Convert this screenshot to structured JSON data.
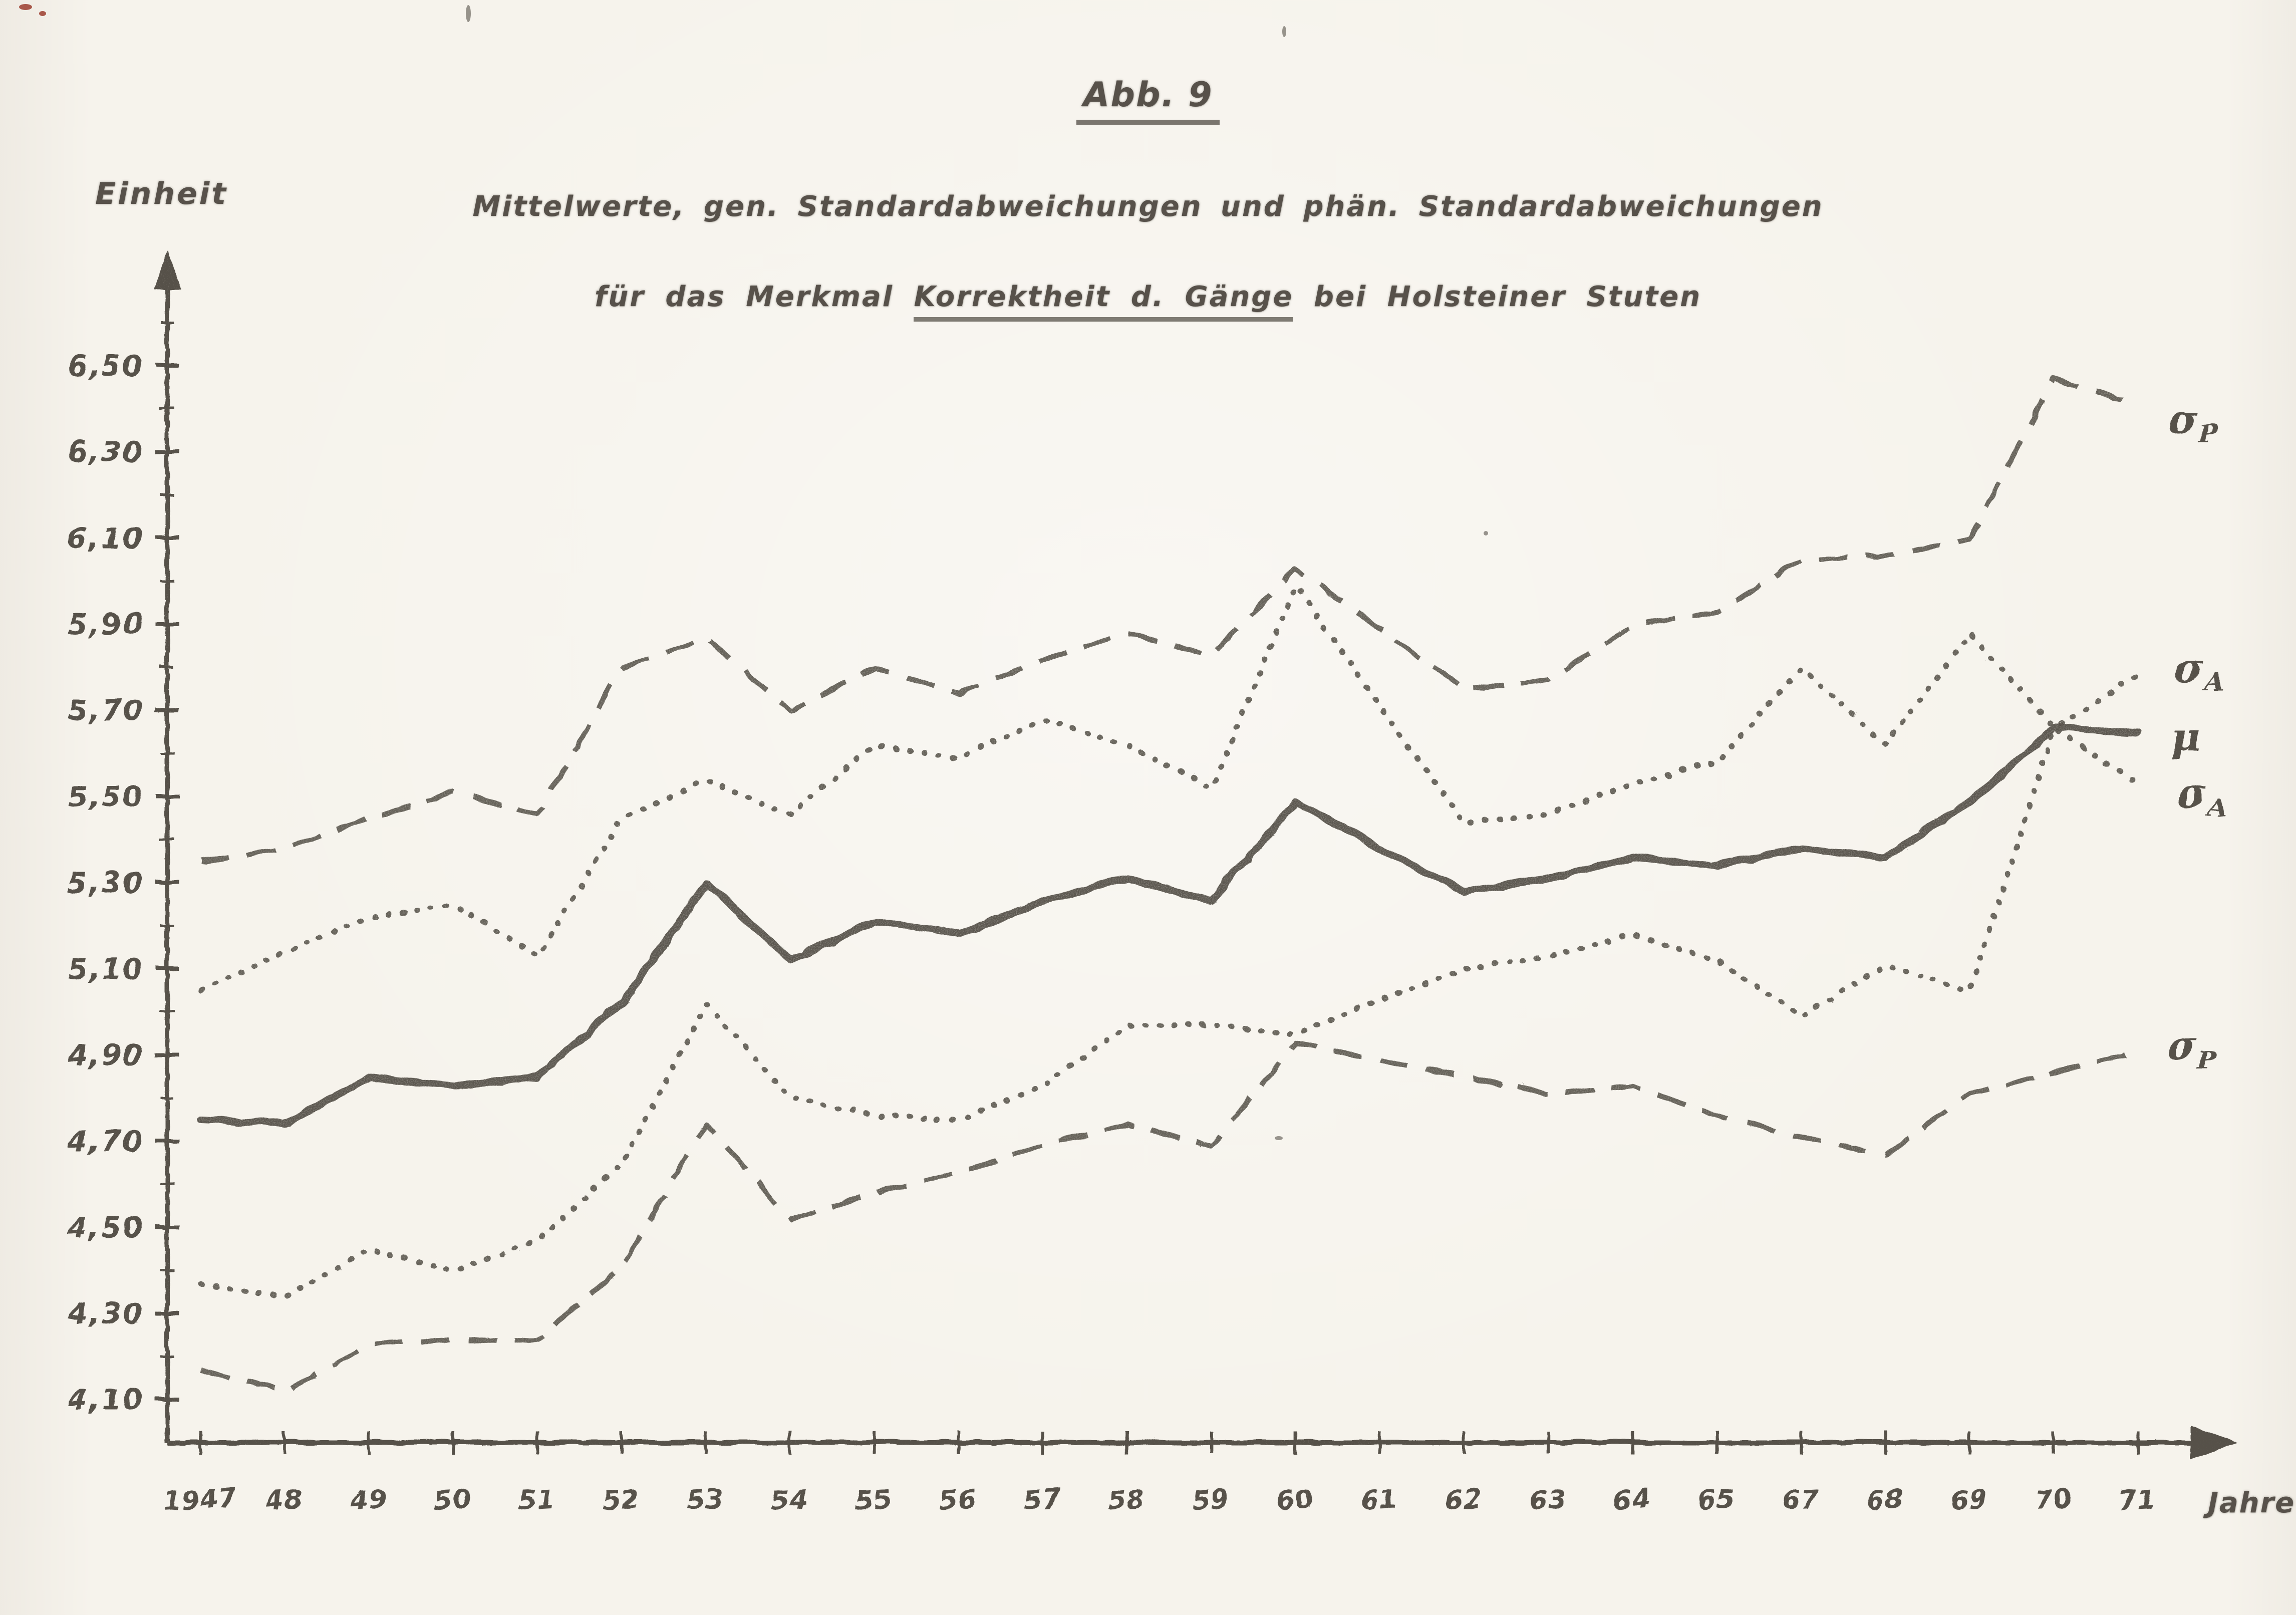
{
  "figure": {
    "number": "Abb. 9",
    "subtitle_line1": "Mittelwerte, gen. Standardabweichungen und phän. Standardabweichungen",
    "subtitle_line2_prefix": "für das Merkmal",
    "subtitle_line2_underlined": "Korrektheit d. Gänge",
    "subtitle_line2_suffix": "bei Holsteiner Stuten"
  },
  "axes": {
    "y_label": "Einheit",
    "x_label": "Jahre",
    "y_tick_labels": [
      "6,50",
      "6,30",
      "6,10",
      "5,90",
      "5,70",
      "5,50",
      "5,30",
      "5,10",
      "4,90",
      "4,70",
      "4,50",
      "4,30",
      "4,10"
    ],
    "y_tick_values": [
      6.5,
      6.3,
      6.1,
      5.9,
      5.7,
      5.5,
      5.3,
      5.1,
      4.9,
      4.7,
      4.5,
      4.3,
      4.1
    ]
  },
  "colors": {
    "paper": "#f6f3ec",
    "ink": "#57514a",
    "ink_dark": "#4d473f"
  },
  "chart_data": {
    "type": "line",
    "title": "Abb. 9 — Mittelwerte, gen. Standardabweichungen und phän. Standardabweichungen für das Merkmal Korrektheit d. Gänge bei Holsteiner Stuten",
    "xlabel": "Jahre",
    "ylabel": "Einheit",
    "ylim": [
      4.0,
      6.6
    ],
    "ytick_step_labeled": 0.2,
    "ytick_step_minor": 0.1,
    "grid": false,
    "legend_position": "right-end-labels",
    "categories": [
      "1947",
      "48",
      "49",
      "50",
      "51",
      "52",
      "53",
      "54",
      "55",
      "56",
      "57",
      "58",
      "59",
      "60",
      "61",
      "62",
      "63",
      "64",
      "65",
      "67",
      "68",
      "69",
      "70",
      "71"
    ],
    "series": [
      {
        "name": "sigma-p-upper",
        "display_name": "σP — phän. Standardabweichung (obere Kurve)",
        "label_main": "σ",
        "label_sub": "P",
        "style": "dashed",
        "values": [
          5.35,
          5.38,
          5.45,
          5.51,
          5.46,
          5.8,
          5.87,
          5.7,
          5.8,
          5.74,
          5.82,
          5.88,
          5.83,
          6.03,
          5.89,
          5.75,
          5.77,
          5.9,
          5.93,
          6.05,
          6.06,
          6.1,
          6.47,
          6.41
        ]
      },
      {
        "name": "sigma-a-upper",
        "display_name": "σA — gen. Standardabweichung (obere Kurve)",
        "label_main": "σ",
        "label_sub": "A",
        "style": "dotted",
        "values": [
          5.05,
          5.14,
          5.22,
          5.25,
          5.13,
          5.45,
          5.54,
          5.46,
          5.62,
          5.59,
          5.68,
          5.62,
          5.52,
          5.99,
          5.71,
          5.44,
          5.46,
          5.53,
          5.58,
          5.8,
          5.62,
          5.88,
          5.66,
          5.78
        ]
      },
      {
        "name": "mu",
        "display_name": "μ — Mittelwert",
        "label_main": "μ",
        "label_sub": "",
        "style": "solid",
        "values": [
          4.75,
          4.74,
          4.85,
          4.83,
          4.85,
          5.02,
          5.3,
          5.12,
          5.21,
          5.18,
          5.26,
          5.31,
          5.26,
          5.49,
          5.38,
          5.28,
          5.31,
          5.36,
          5.34,
          5.38,
          5.36,
          5.49,
          5.66,
          5.65
        ]
      },
      {
        "name": "sigma-a-lower",
        "display_name": "σA — gen. Standardabweichung (untere Kurve)",
        "label_main": "σ",
        "label_sub": "A",
        "style": "dotted",
        "values": [
          4.37,
          4.34,
          4.45,
          4.4,
          4.47,
          4.65,
          5.02,
          4.8,
          4.76,
          4.75,
          4.83,
          4.97,
          4.97,
          4.95,
          5.03,
          5.1,
          5.13,
          5.18,
          5.12,
          4.99,
          5.11,
          5.05,
          5.66,
          5.53
        ]
      },
      {
        "name": "sigma-p-lower",
        "display_name": "σP — phän. Standardabweichung (untere Kurve)",
        "label_main": "σ",
        "label_sub": "P",
        "style": "dashed",
        "values": [
          4.17,
          4.12,
          4.23,
          4.24,
          4.24,
          4.41,
          4.74,
          4.52,
          4.58,
          4.63,
          4.69,
          4.74,
          4.69,
          4.93,
          4.89,
          4.85,
          4.81,
          4.83,
          4.76,
          4.71,
          4.67,
          4.81,
          4.86,
          4.91
        ]
      }
    ]
  }
}
